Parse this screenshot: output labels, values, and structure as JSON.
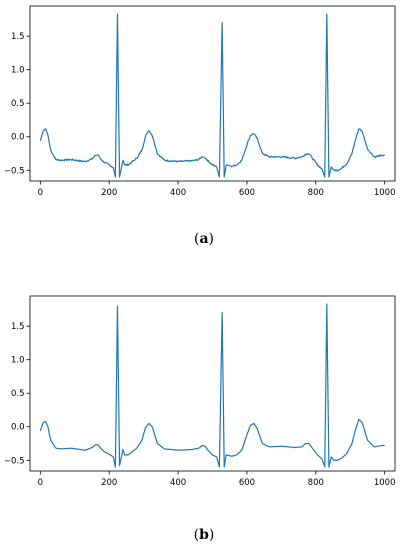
{
  "chart_data": [
    {
      "type": "line",
      "caption": "(a)",
      "xlim": [
        -30,
        1030
      ],
      "ylim": [
        -0.66,
        1.95
      ],
      "xticks": [
        0,
        200,
        400,
        600,
        800,
        1000
      ],
      "yticks": [
        -0.5,
        0.0,
        0.5,
        1.0,
        1.5
      ],
      "xtick_labels": [
        "0",
        "200",
        "400",
        "600",
        "800",
        "1000"
      ],
      "ytick_labels": [
        "−0.5",
        "0.0",
        "0.5",
        "1.0",
        "1.5"
      ],
      "grid": false,
      "color": "#1f77b4",
      "noise": 0.012,
      "peaks": [
        {
          "x": 224,
          "y": 1.83
        },
        {
          "x": 528,
          "y": 1.7
        },
        {
          "x": 832,
          "y": 1.83
        }
      ],
      "series": [
        {
          "x": [
            0,
            8,
            15,
            22,
            30,
            45,
            60,
            90,
            130,
            150,
            160,
            168,
            175,
            185,
            200,
            212,
            218,
            224,
            230,
            236,
            240,
            245,
            255,
            265,
            280,
            295,
            305,
            315,
            325,
            340,
            360,
            400,
            440,
            460,
            470,
            478,
            487,
            500,
            512,
            520,
            528,
            534,
            540,
            548,
            556,
            570,
            585,
            600,
            610,
            620,
            630,
            645,
            665,
            700,
            740,
            760,
            770,
            780,
            790,
            805,
            818,
            826,
            832,
            838,
            845,
            852,
            862,
            875,
            890,
            905,
            915,
            925,
            935,
            950,
            970,
            990,
            1000
          ],
          "y": [
            -0.06,
            0.08,
            0.12,
            0.03,
            -0.2,
            -0.34,
            -0.35,
            -0.34,
            -0.37,
            -0.33,
            -0.28,
            -0.27,
            -0.33,
            -0.38,
            -0.42,
            -0.46,
            -0.6,
            1.83,
            -0.6,
            -0.45,
            -0.35,
            -0.42,
            -0.42,
            -0.38,
            -0.32,
            -0.2,
            0.0,
            0.1,
            0.02,
            -0.25,
            -0.35,
            -0.37,
            -0.36,
            -0.34,
            -0.3,
            -0.31,
            -0.36,
            -0.42,
            -0.45,
            -0.6,
            1.7,
            -0.6,
            -0.42,
            -0.43,
            -0.44,
            -0.42,
            -0.35,
            -0.12,
            0.02,
            0.05,
            -0.03,
            -0.25,
            -0.3,
            -0.3,
            -0.32,
            -0.3,
            -0.26,
            -0.25,
            -0.32,
            -0.42,
            -0.48,
            -0.6,
            1.83,
            -0.6,
            -0.45,
            -0.5,
            -0.5,
            -0.47,
            -0.4,
            -0.25,
            -0.05,
            0.12,
            0.08,
            -0.18,
            -0.3,
            -0.28,
            -0.28
          ]
        }
      ]
    },
    {
      "type": "line",
      "caption": "(b)",
      "xlim": [
        -30,
        1030
      ],
      "ylim": [
        -0.66,
        1.95
      ],
      "xticks": [
        0,
        200,
        400,
        600,
        800,
        1000
      ],
      "yticks": [
        -0.5,
        0.0,
        0.5,
        1.0,
        1.5
      ],
      "xtick_labels": [
        "0",
        "200",
        "400",
        "600",
        "800",
        "1000"
      ],
      "ytick_labels": [
        "−0.5",
        "0.0",
        "0.5",
        "1.0",
        "1.5"
      ],
      "grid": false,
      "color": "#1f77b4",
      "noise": 0,
      "peaks": [
        {
          "x": 224,
          "y": 1.8
        },
        {
          "x": 528,
          "y": 1.7
        },
        {
          "x": 832,
          "y": 1.83
        }
      ],
      "series": [
        {
          "x": [
            0,
            8,
            15,
            22,
            30,
            45,
            60,
            90,
            130,
            150,
            160,
            168,
            175,
            185,
            200,
            212,
            218,
            224,
            230,
            236,
            240,
            245,
            255,
            265,
            280,
            295,
            305,
            315,
            325,
            340,
            360,
            400,
            440,
            460,
            470,
            478,
            487,
            500,
            512,
            520,
            528,
            534,
            540,
            548,
            556,
            570,
            585,
            600,
            610,
            620,
            630,
            645,
            665,
            700,
            740,
            760,
            770,
            780,
            790,
            805,
            818,
            826,
            832,
            838,
            845,
            852,
            862,
            875,
            890,
            905,
            915,
            925,
            935,
            950,
            970,
            990,
            1000
          ],
          "y": [
            -0.06,
            0.06,
            0.08,
            0.0,
            -0.2,
            -0.32,
            -0.33,
            -0.32,
            -0.35,
            -0.31,
            -0.27,
            -0.27,
            -0.32,
            -0.37,
            -0.41,
            -0.45,
            -0.6,
            1.8,
            -0.58,
            -0.44,
            -0.34,
            -0.42,
            -0.42,
            -0.38,
            -0.32,
            -0.2,
            -0.02,
            0.05,
            0.0,
            -0.25,
            -0.33,
            -0.35,
            -0.34,
            -0.32,
            -0.28,
            -0.29,
            -0.35,
            -0.42,
            -0.45,
            -0.6,
            1.7,
            -0.6,
            -0.42,
            -0.43,
            -0.44,
            -0.42,
            -0.35,
            -0.12,
            0.02,
            0.05,
            -0.03,
            -0.25,
            -0.3,
            -0.29,
            -0.31,
            -0.3,
            -0.25,
            -0.25,
            -0.32,
            -0.42,
            -0.48,
            -0.6,
            1.83,
            -0.6,
            -0.45,
            -0.5,
            -0.5,
            -0.47,
            -0.4,
            -0.25,
            -0.05,
            0.11,
            0.06,
            -0.2,
            -0.3,
            -0.28,
            -0.28
          ]
        }
      ]
    }
  ]
}
